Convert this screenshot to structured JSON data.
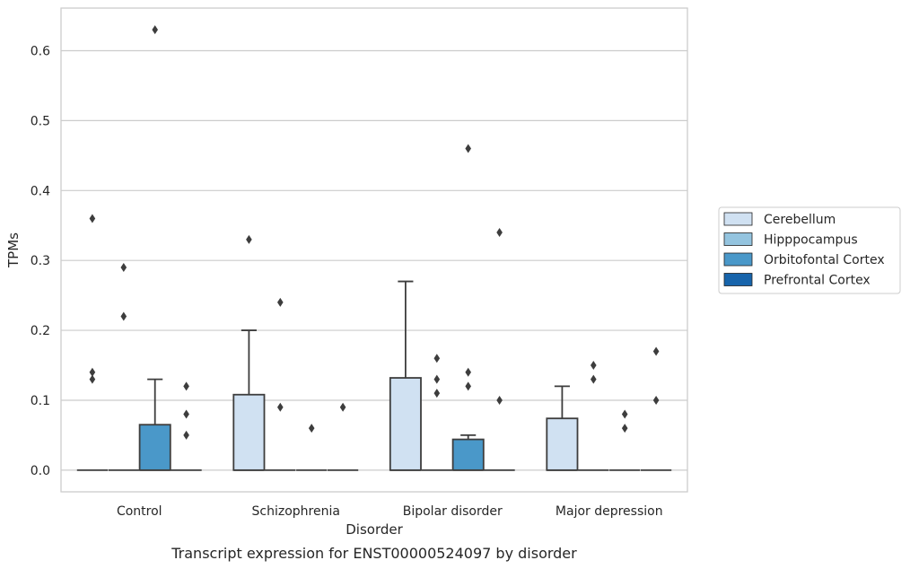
{
  "chart_data": {
    "type": "box",
    "title": "",
    "caption": "Transcript expression for ENST00000524097 by disorder",
    "xlabel": "Disorder",
    "ylabel": "TPMs",
    "ylim": [
      -0.031,
      0.661
    ],
    "yticks": [
      0.0,
      0.1,
      0.2,
      0.3,
      0.4,
      0.5,
      0.6
    ],
    "ytick_labels": [
      "0.0",
      "0.1",
      "0.2",
      "0.3",
      "0.4",
      "0.5",
      "0.6"
    ],
    "grid": "horizontal",
    "legend_position": "right",
    "categories": [
      "Control",
      "Schizophrenia",
      "Bipolar disorder",
      "Major depression"
    ],
    "series": [
      {
        "name": "Cerebellum",
        "color": "#d0e1f2",
        "boxes": [
          {
            "q1": 0,
            "median": 0,
            "q3": 0,
            "whisker_low": 0,
            "whisker_high": 0,
            "outliers": [
              0.36,
              0.14,
              0.13
            ]
          },
          {
            "q1": 0,
            "median": 0,
            "q3": 0.108,
            "whisker_low": 0,
            "whisker_high": 0.2,
            "outliers": [
              0.33
            ]
          },
          {
            "q1": 0,
            "median": 0,
            "q3": 0.132,
            "whisker_low": 0,
            "whisker_high": 0.27,
            "outliers": []
          },
          {
            "q1": 0,
            "median": 0,
            "q3": 0.074,
            "whisker_low": 0,
            "whisker_high": 0.12,
            "outliers": []
          }
        ]
      },
      {
        "name": "Hipppocampus",
        "color": "#94c4df",
        "boxes": [
          {
            "q1": 0,
            "median": 0,
            "q3": 0,
            "whisker_low": 0,
            "whisker_high": 0,
            "outliers": [
              0.29,
              0.22
            ]
          },
          {
            "q1": 0,
            "median": 0,
            "q3": 0,
            "whisker_low": 0,
            "whisker_high": 0,
            "outliers": [
              0.24,
              0.09
            ]
          },
          {
            "q1": 0,
            "median": 0,
            "q3": 0,
            "whisker_low": 0,
            "whisker_high": 0,
            "outliers": [
              0.16,
              0.13,
              0.11
            ]
          },
          {
            "q1": 0,
            "median": 0,
            "q3": 0,
            "whisker_low": 0,
            "whisker_high": 0,
            "outliers": [
              0.15,
              0.13
            ]
          }
        ]
      },
      {
        "name": "Orbitofontal Cortex",
        "color": "#4a98c9",
        "boxes": [
          {
            "q1": 0,
            "median": 0,
            "q3": 0.065,
            "whisker_low": 0,
            "whisker_high": 0.13,
            "outliers": [
              0.63
            ]
          },
          {
            "q1": 0,
            "median": 0,
            "q3": 0,
            "whisker_low": 0,
            "whisker_high": 0,
            "outliers": [
              0.06
            ]
          },
          {
            "q1": 0,
            "median": 0,
            "q3": 0.044,
            "whisker_low": 0,
            "whisker_high": 0.05,
            "outliers": [
              0.46,
              0.14,
              0.12
            ]
          },
          {
            "q1": 0,
            "median": 0,
            "q3": 0,
            "whisker_low": 0,
            "whisker_high": 0,
            "outliers": [
              0.08,
              0.06
            ]
          }
        ]
      },
      {
        "name": "Prefrontal Cortex",
        "color": "#1764ab",
        "boxes": [
          {
            "q1": 0,
            "median": 0,
            "q3": 0,
            "whisker_low": 0,
            "whisker_high": 0,
            "outliers": [
              0.12,
              0.08,
              0.05
            ]
          },
          {
            "q1": 0,
            "median": 0,
            "q3": 0,
            "whisker_low": 0,
            "whisker_high": 0,
            "outliers": [
              0.09
            ]
          },
          {
            "q1": 0,
            "median": 0,
            "q3": 0,
            "whisker_low": 0,
            "whisker_high": 0,
            "outliers": [
              0.34,
              0.1
            ]
          },
          {
            "q1": 0,
            "median": 0,
            "q3": 0,
            "whisker_low": 0,
            "whisker_high": 0,
            "outliers": [
              0.17,
              0.1
            ]
          }
        ]
      }
    ]
  }
}
